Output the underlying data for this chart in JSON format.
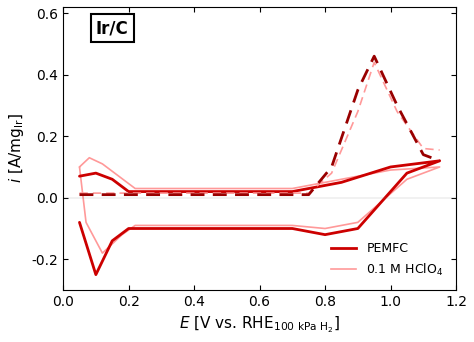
{
  "title": "Ir/C",
  "xlabel": "E [V vs. RHE$_{100\\ kPa\\ H_2}$]",
  "ylabel": "i [A/mg$_{Ir}$]",
  "xlim": [
    0.05,
    1.2
  ],
  "ylim": [
    -0.3,
    0.62
  ],
  "xticks": [
    0.0,
    0.2,
    0.4,
    0.6,
    0.8,
    1.0,
    1.2
  ],
  "yticks": [
    -0.2,
    0.0,
    0.2,
    0.4,
    0.6
  ],
  "pemfc_color": "#cc0000",
  "hclo4_color": "#ff9999",
  "dashed_dark_color": "#990000",
  "dashed_light_color": "#ff6666"
}
